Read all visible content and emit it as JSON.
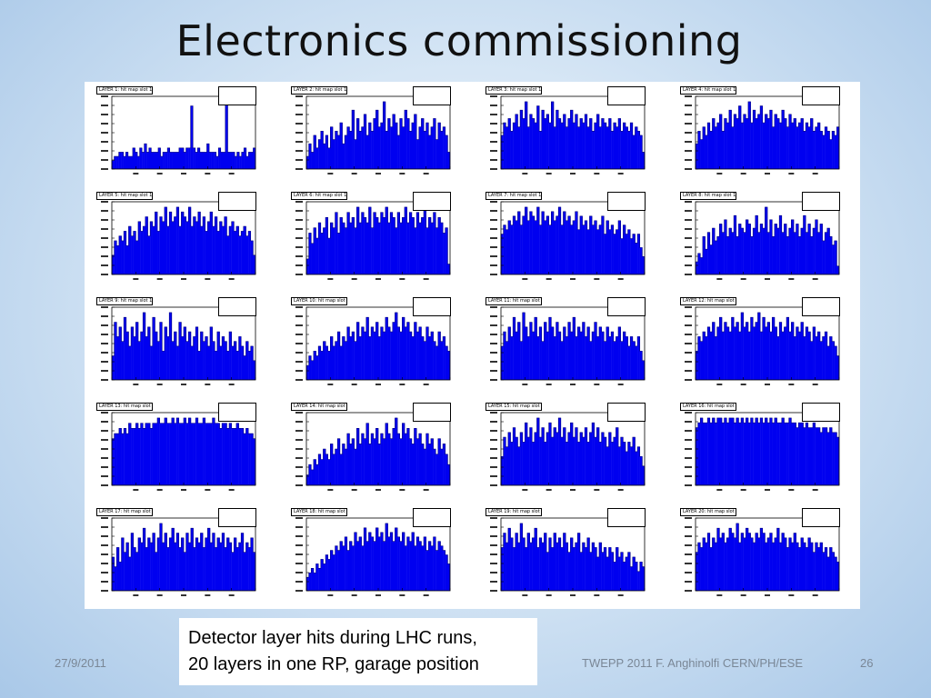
{
  "slide": {
    "title": "Electronics commissioning",
    "caption_line1": "Detector layer hits during LHC runs,",
    "caption_line2": "20 layers in one RP, garage position",
    "footer_date": "27/9/2011",
    "footer_credit": "TWEPP 2011 F. Anghinolfi CERN/PH/ESE",
    "page_number": "26"
  },
  "colors": {
    "bar_fill": "#0000f0",
    "bar_edge": "#000080",
    "panel": "#ffffff"
  },
  "chart_data": [
    {
      "type": "bar",
      "title": "LAYER 1: hit map slot 1",
      "values": [
        2,
        3,
        3,
        4,
        4,
        3,
        4,
        3,
        3,
        5,
        4,
        3,
        5,
        4,
        6,
        4,
        5,
        4,
        4,
        4,
        5,
        3,
        4,
        4,
        5,
        4,
        4,
        4,
        4,
        5,
        5,
        4,
        5,
        5,
        15,
        5,
        4,
        5,
        4,
        4,
        4,
        6,
        4,
        4,
        4,
        3,
        5,
        4,
        4,
        16,
        4,
        4,
        4,
        3,
        4,
        3,
        4,
        5,
        3,
        4,
        4,
        5
      ]
    },
    {
      "type": "bar",
      "title": "LAYER 2: hit map slot 1",
      "values": [
        3,
        6,
        4,
        8,
        5,
        7,
        9,
        6,
        8,
        5,
        10,
        7,
        9,
        8,
        11,
        6,
        8,
        10,
        9,
        14,
        7,
        12,
        9,
        10,
        13,
        8,
        11,
        9,
        12,
        14,
        10,
        11,
        16,
        9,
        12,
        10,
        13,
        11,
        8,
        12,
        10,
        14,
        12,
        9,
        11,
        13,
        7,
        10,
        12,
        9,
        11,
        8,
        10,
        12,
        7,
        11,
        9,
        10,
        8,
        4
      ]
    },
    {
      "type": "bar",
      "title": "LAYER 3: hit map slot 1",
      "values": [
        8,
        11,
        10,
        12,
        9,
        11,
        13,
        10,
        14,
        12,
        16,
        10,
        13,
        12,
        11,
        15,
        9,
        14,
        12,
        13,
        11,
        16,
        10,
        14,
        12,
        11,
        13,
        10,
        12,
        14,
        11,
        13,
        10,
        12,
        11,
        13,
        10,
        12,
        9,
        11,
        13,
        10,
        12,
        11,
        10,
        12,
        9,
        11,
        10,
        12,
        9,
        11,
        10,
        9,
        11,
        8,
        10,
        9,
        8,
        4
      ]
    },
    {
      "type": "bar",
      "title": "LAYER 4: hit map slot 1",
      "values": [
        6,
        9,
        7,
        10,
        8,
        11,
        9,
        12,
        10,
        11,
        13,
        9,
        12,
        11,
        14,
        10,
        13,
        12,
        15,
        11,
        13,
        12,
        16,
        11,
        14,
        12,
        13,
        15,
        11,
        13,
        12,
        14,
        10,
        13,
        12,
        11,
        14,
        12,
        10,
        13,
        11,
        12,
        10,
        11,
        12,
        9,
        11,
        10,
        12,
        9,
        10,
        11,
        9,
        8,
        10,
        9,
        7,
        9,
        8,
        10
      ]
    },
    {
      "type": "bar",
      "title": "LAYER 5: hit map slot 1",
      "values": [
        4,
        7,
        6,
        8,
        7,
        9,
        6,
        10,
        8,
        9,
        7,
        11,
        9,
        10,
        12,
        8,
        11,
        10,
        13,
        9,
        12,
        11,
        14,
        10,
        13,
        11,
        12,
        14,
        10,
        13,
        12,
        11,
        14,
        10,
        12,
        11,
        13,
        10,
        12,
        9,
        11,
        13,
        10,
        12,
        9,
        11,
        10,
        12,
        8,
        10,
        11,
        9,
        10,
        8,
        9,
        10,
        8,
        9,
        7,
        4
      ]
    },
    {
      "type": "bar",
      "title": "LAYER 6: hit map slot 1",
      "values": [
        3,
        8,
        6,
        9,
        7,
        10,
        8,
        9,
        11,
        7,
        10,
        9,
        12,
        8,
        11,
        10,
        9,
        12,
        10,
        11,
        9,
        13,
        10,
        12,
        11,
        10,
        13,
        9,
        12,
        11,
        10,
        12,
        11,
        13,
        10,
        12,
        11,
        9,
        12,
        10,
        11,
        13,
        10,
        12,
        11,
        9,
        12,
        10,
        11,
        13,
        9,
        11,
        10,
        12,
        9,
        11,
        10,
        8,
        9,
        2
      ]
    },
    {
      "type": "bar",
      "title": "LAYER 7: hit map slot 1",
      "values": [
        9,
        11,
        10,
        12,
        11,
        13,
        12,
        14,
        11,
        13,
        15,
        12,
        14,
        13,
        12,
        15,
        11,
        14,
        12,
        13,
        11,
        14,
        12,
        13,
        15,
        11,
        14,
        12,
        13,
        11,
        12,
        14,
        10,
        13,
        11,
        12,
        10,
        13,
        11,
        12,
        10,
        11,
        13,
        9,
        12,
        10,
        11,
        9,
        10,
        12,
        8,
        11,
        9,
        10,
        8,
        9,
        7,
        9,
        6,
        4
      ]
    },
    {
      "type": "bar",
      "title": "LAYER 8: hit map slot 1",
      "values": [
        3,
        5,
        4,
        9,
        6,
        10,
        7,
        11,
        8,
        9,
        12,
        10,
        13,
        9,
        11,
        10,
        14,
        9,
        12,
        11,
        10,
        13,
        12,
        9,
        11,
        14,
        10,
        12,
        11,
        16,
        10,
        13,
        9,
        12,
        11,
        14,
        10,
        12,
        9,
        11,
        13,
        10,
        12,
        9,
        11,
        14,
        10,
        12,
        9,
        11,
        13,
        10,
        12,
        8,
        10,
        11,
        9,
        7,
        8,
        2
      ]
    },
    {
      "type": "bar",
      "title": "LAYER 9: hit map slot 1",
      "values": [
        5,
        12,
        9,
        11,
        8,
        13,
        10,
        7,
        11,
        9,
        12,
        8,
        10,
        14,
        9,
        11,
        7,
        13,
        10,
        8,
        12,
        6,
        11,
        9,
        14,
        8,
        10,
        7,
        12,
        9,
        11,
        8,
        10,
        7,
        9,
        11,
        6,
        10,
        8,
        9,
        7,
        11,
        8,
        6,
        10,
        7,
        9,
        8,
        6,
        10,
        7,
        8,
        6,
        9,
        7,
        5,
        8,
        6,
        7,
        4
      ]
    },
    {
      "type": "bar",
      "title": "LAYER 10: hit map slot 1",
      "values": [
        3,
        5,
        4,
        6,
        5,
        7,
        6,
        8,
        7,
        6,
        9,
        7,
        8,
        10,
        7,
        9,
        8,
        11,
        9,
        10,
        8,
        12,
        9,
        11,
        10,
        13,
        9,
        11,
        10,
        12,
        9,
        11,
        10,
        13,
        11,
        10,
        12,
        14,
        11,
        10,
        13,
        11,
        12,
        10,
        9,
        12,
        10,
        11,
        9,
        8,
        11,
        9,
        10,
        8,
        7,
        10,
        8,
        9,
        7,
        6
      ]
    },
    {
      "type": "bar",
      "title": "LAYER 11: hit map slot 1",
      "values": [
        7,
        10,
        8,
        11,
        9,
        13,
        10,
        12,
        8,
        14,
        11,
        9,
        12,
        10,
        13,
        9,
        11,
        8,
        12,
        10,
        13,
        11,
        9,
        12,
        10,
        8,
        11,
        9,
        12,
        10,
        13,
        9,
        11,
        10,
        12,
        9,
        11,
        8,
        10,
        12,
        9,
        11,
        10,
        8,
        11,
        9,
        10,
        8,
        9,
        11,
        8,
        10,
        9,
        7,
        9,
        8,
        7,
        9,
        6,
        4
      ]
    },
    {
      "type": "bar",
      "title": "LAYER 12: hit map slot 1",
      "values": [
        6,
        9,
        8,
        10,
        9,
        11,
        10,
        12,
        9,
        11,
        13,
        10,
        12,
        11,
        10,
        13,
        11,
        12,
        10,
        14,
        11,
        12,
        10,
        13,
        11,
        12,
        14,
        10,
        13,
        11,
        12,
        10,
        13,
        11,
        9,
        12,
        10,
        11,
        13,
        10,
        12,
        9,
        11,
        10,
        12,
        9,
        11,
        10,
        8,
        11,
        9,
        10,
        8,
        9,
        10,
        7,
        9,
        8,
        7,
        5
      ]
    },
    {
      "type": "bar",
      "title": "LAYER 13: hit map slot 1",
      "values": [
        9,
        10,
        10,
        11,
        10,
        11,
        10,
        12,
        11,
        11,
        12,
        11,
        12,
        11,
        12,
        12,
        11,
        12,
        12,
        13,
        12,
        12,
        13,
        12,
        12,
        13,
        12,
        13,
        12,
        12,
        13,
        12,
        13,
        12,
        12,
        13,
        12,
        12,
        13,
        12,
        12,
        12,
        13,
        12,
        12,
        11,
        12,
        12,
        11,
        12,
        11,
        11,
        12,
        11,
        11,
        10,
        11,
        10,
        10,
        9
      ]
    },
    {
      "type": "bar",
      "title": "LAYER 14: hit map slot 1",
      "values": [
        2,
        4,
        3,
        5,
        4,
        6,
        5,
        7,
        6,
        5,
        8,
        6,
        7,
        9,
        6,
        8,
        7,
        10,
        8,
        9,
        7,
        11,
        8,
        10,
        9,
        12,
        8,
        10,
        9,
        11,
        8,
        10,
        9,
        12,
        10,
        9,
        11,
        13,
        10,
        9,
        12,
        10,
        11,
        9,
        8,
        11,
        9,
        10,
        8,
        7,
        10,
        8,
        9,
        7,
        6,
        9,
        7,
        8,
        6,
        4
      ]
    },
    {
      "type": "bar",
      "title": "LAYER 15: hit map slot 1",
      "values": [
        6,
        10,
        8,
        11,
        9,
        12,
        10,
        8,
        11,
        9,
        13,
        10,
        12,
        9,
        11,
        14,
        10,
        12,
        9,
        11,
        13,
        10,
        12,
        11,
        14,
        10,
        12,
        9,
        11,
        13,
        10,
        12,
        9,
        11,
        10,
        12,
        9,
        11,
        13,
        10,
        12,
        9,
        11,
        10,
        8,
        11,
        9,
        10,
        12,
        8,
        10,
        9,
        7,
        9,
        8,
        10,
        7,
        8,
        6,
        4
      ]
    },
    {
      "type": "bar",
      "title": "LAYER 16: hit map slot 1",
      "values": [
        12,
        13,
        14,
        13,
        13,
        14,
        13,
        14,
        13,
        14,
        14,
        13,
        14,
        13,
        14,
        14,
        13,
        14,
        13,
        14,
        13,
        14,
        13,
        14,
        13,
        14,
        13,
        14,
        13,
        14,
        13,
        14,
        13,
        14,
        13,
        13,
        14,
        13,
        13,
        14,
        13,
        13,
        12,
        13,
        13,
        12,
        13,
        12,
        12,
        13,
        12,
        12,
        11,
        12,
        12,
        11,
        12,
        11,
        11,
        10
      ]
    },
    {
      "type": "bar",
      "title": "LAYER 17: hit map slot 1",
      "values": [
        7,
        5,
        9,
        6,
        11,
        8,
        10,
        7,
        12,
        9,
        8,
        11,
        10,
        13,
        9,
        11,
        10,
        12,
        8,
        11,
        14,
        10,
        12,
        9,
        11,
        13,
        10,
        12,
        9,
        11,
        8,
        12,
        10,
        13,
        9,
        11,
        10,
        12,
        9,
        11,
        13,
        10,
        12,
        9,
        11,
        10,
        12,
        9,
        11,
        10,
        8,
        11,
        9,
        10,
        12,
        8,
        10,
        9,
        11,
        8
      ]
    },
    {
      "type": "bar",
      "title": "LAYER 18: hit map slot 1",
      "values": [
        3,
        4,
        5,
        4,
        6,
        5,
        7,
        6,
        8,
        7,
        9,
        8,
        10,
        9,
        11,
        10,
        12,
        9,
        11,
        10,
        13,
        11,
        12,
        10,
        14,
        11,
        13,
        12,
        11,
        14,
        12,
        13,
        11,
        15,
        12,
        13,
        11,
        14,
        12,
        11,
        13,
        10,
        12,
        11,
        13,
        10,
        12,
        11,
        10,
        12,
        9,
        11,
        10,
        12,
        9,
        11,
        10,
        9,
        8,
        6
      ]
    },
    {
      "type": "bar",
      "title": "LAYER 19: hit map slot 1",
      "values": [
        9,
        12,
        10,
        13,
        11,
        9,
        12,
        10,
        14,
        11,
        9,
        12,
        10,
        11,
        13,
        9,
        11,
        10,
        12,
        8,
        11,
        9,
        12,
        10,
        11,
        9,
        12,
        10,
        8,
        11,
        9,
        10,
        12,
        8,
        10,
        9,
        11,
        8,
        10,
        9,
        7,
        10,
        8,
        9,
        7,
        9,
        8,
        6,
        9,
        7,
        8,
        6,
        7,
        8,
        5,
        7,
        6,
        4,
        6,
        5
      ]
    },
    {
      "type": "bar",
      "title": "LAYER 20: hit map slot 1",
      "values": [
        8,
        10,
        9,
        11,
        10,
        12,
        9,
        11,
        10,
        13,
        11,
        12,
        10,
        11,
        13,
        12,
        11,
        14,
        10,
        12,
        11,
        13,
        12,
        11,
        10,
        12,
        11,
        13,
        12,
        10,
        11,
        12,
        10,
        11,
        13,
        10,
        12,
        11,
        9,
        11,
        10,
        12,
        10,
        9,
        11,
        10,
        9,
        11,
        10,
        8,
        10,
        9,
        10,
        8,
        9,
        7,
        9,
        8,
        7,
        6
      ]
    }
  ]
}
